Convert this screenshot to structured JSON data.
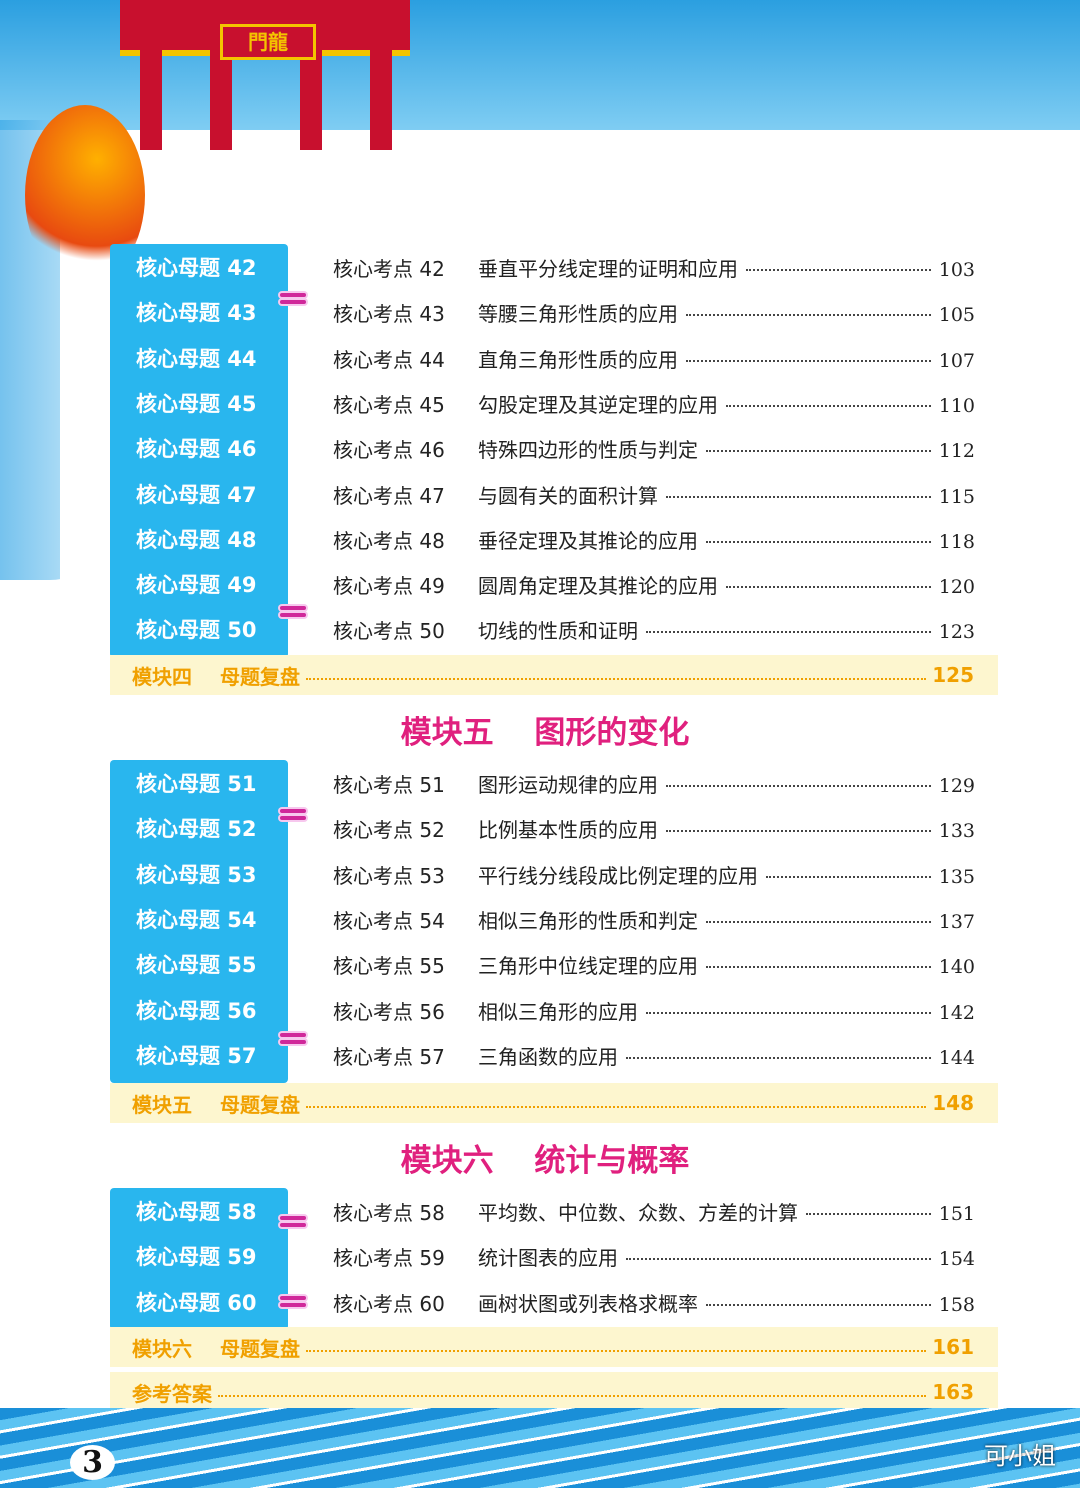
{
  "header": {
    "gate_sign": "門龍"
  },
  "sections": [
    {
      "heading": "",
      "rows": [
        [
          "核心母题 42",
          "核心考点 42",
          "垂直平分线定理的证明和应用",
          "103"
        ],
        [
          "核心母题 43",
          "核心考点 43",
          "等腰三角形性质的应用",
          "105"
        ],
        [
          "核心母题 44",
          "核心考点 44",
          "直角三角形性质的应用",
          "107"
        ],
        [
          "核心母题 45",
          "核心考点 45",
          "勾股定理及其逆定理的应用",
          "110"
        ],
        [
          "核心母题 46",
          "核心考点 46",
          "特殊四边形的性质与判定",
          "112"
        ],
        [
          "核心母题 47",
          "核心考点 47",
          "与圆有关的面积计算",
          "115"
        ],
        [
          "核心母题 48",
          "核心考点 48",
          "垂径定理及其推论的应用",
          "118"
        ],
        [
          "核心母题 49",
          "核心考点 49",
          "圆周角定理及其推论的应用",
          "120"
        ],
        [
          "核心母题 50",
          "核心考点 50",
          "切线的性质和证明",
          "123"
        ]
      ],
      "review": {
        "module": "模块四",
        "label": "母题复盘",
        "page": "125"
      }
    },
    {
      "heading": "模块五 图形的变化",
      "rows": [
        [
          "核心母题 51",
          "核心考点 51",
          "图形运动规律的应用",
          "129"
        ],
        [
          "核心母题 52",
          "核心考点 52",
          "比例基本性质的应用",
          "133"
        ],
        [
          "核心母题 53",
          "核心考点 53",
          "平行线分线段成比例定理的应用",
          "135"
        ],
        [
          "核心母题 54",
          "核心考点 54",
          "相似三角形的性质和判定",
          "137"
        ],
        [
          "核心母题 55",
          "核心考点 55",
          "三角形中位线定理的应用",
          "140"
        ],
        [
          "核心母题 56",
          "核心考点 56",
          "相似三角形的应用",
          "142"
        ],
        [
          "核心母题 57",
          "核心考点 57",
          "三角函数的应用",
          "144"
        ]
      ],
      "review": {
        "module": "模块五",
        "label": "母题复盘",
        "page": "148"
      }
    },
    {
      "heading": "模块六 统计与概率",
      "rows": [
        [
          "核心母题 58",
          "核心考点 58",
          "平均数、中位数、众数、方差的计算",
          "151"
        ],
        [
          "核心母题 59",
          "核心考点 59",
          "统计图表的应用",
          "154"
        ],
        [
          "核心母题 60",
          "核心考点 60",
          "画树状图或列表格求概率",
          "158"
        ]
      ],
      "review": {
        "module": "模块六",
        "label": "母题复盘",
        "page": "161"
      }
    }
  ],
  "answers": {
    "label": "参考答案",
    "page": "163"
  },
  "footer": {
    "page_number": "3",
    "watermark": "可小姐"
  },
  "colors": {
    "box": "#29b6ee",
    "heading": "#e0207e",
    "review": "#f0a000"
  }
}
